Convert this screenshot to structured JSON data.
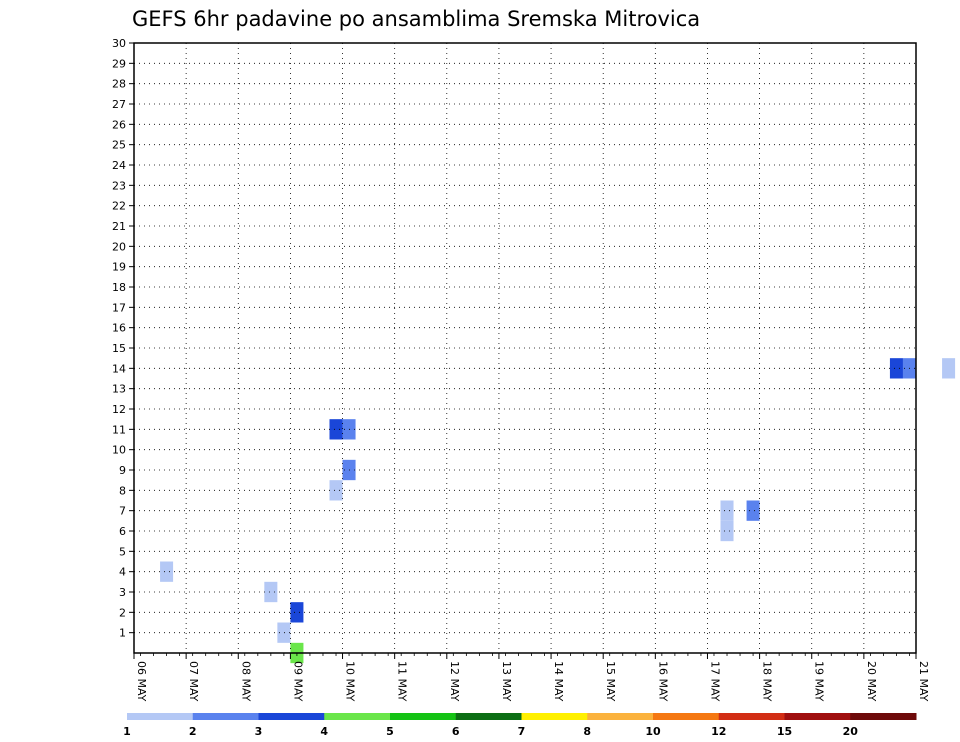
{
  "title": "GEFS 6hr padavine po ansamblima Sremska Mitrovica",
  "chart_data": {
    "type": "heatmap",
    "title": "GEFS 6hr padavine po ansamblima Sremska Mitrovica",
    "x_labels": [
      "06 MAY",
      "07 MAY",
      "08 MAY",
      "09 MAY",
      "10 MAY",
      "11 MAY",
      "12 MAY",
      "13 MAY",
      "14 MAY",
      "15 MAY",
      "16 MAY",
      "17 MAY",
      "18 MAY",
      "19 MAY",
      "20 MAY",
      "21 MAY"
    ],
    "y_labels": [
      "1",
      "2",
      "3",
      "4",
      "5",
      "6",
      "7",
      "8",
      "9",
      "10",
      "11",
      "12",
      "13",
      "14",
      "15",
      "16",
      "17",
      "18",
      "19",
      "20",
      "21",
      "22",
      "23",
      "24",
      "25",
      "26",
      "27",
      "28",
      "29",
      "30"
    ],
    "ylim": [
      0,
      30
    ],
    "x_range_days": [
      0,
      15
    ],
    "grid": true,
    "legend": {
      "placement": "bottom",
      "thresholds": [
        "1",
        "2",
        "3",
        "4",
        "5",
        "6",
        "7",
        "8",
        "10",
        "12",
        "15",
        "20"
      ],
      "colors": [
        "#b4c8f5",
        "#5a82ee",
        "#1a46d8",
        "#6ae64a",
        "#14c314",
        "#0c6e14",
        "#fff000",
        "#fbb23c",
        "#f57812",
        "#d22d14",
        "#a00f0f",
        "#6e0a0a"
      ]
    },
    "cells": [
      [
        0.5,
        4,
        0
      ],
      [
        2.5,
        3,
        0
      ],
      [
        2.75,
        1,
        0
      ],
      [
        3.0,
        0,
        3
      ],
      [
        3.0,
        2,
        2
      ],
      [
        3.75,
        8,
        0
      ],
      [
        4.0,
        9,
        1
      ],
      [
        3.75,
        11,
        2
      ],
      [
        4.0,
        11,
        1
      ],
      [
        11.25,
        6,
        0
      ],
      [
        11.25,
        7,
        0
      ],
      [
        11.75,
        7,
        1
      ],
      [
        14.5,
        14,
        2
      ],
      [
        14.75,
        14,
        1
      ],
      [
        15.5,
        14,
        0
      ]
    ]
  }
}
